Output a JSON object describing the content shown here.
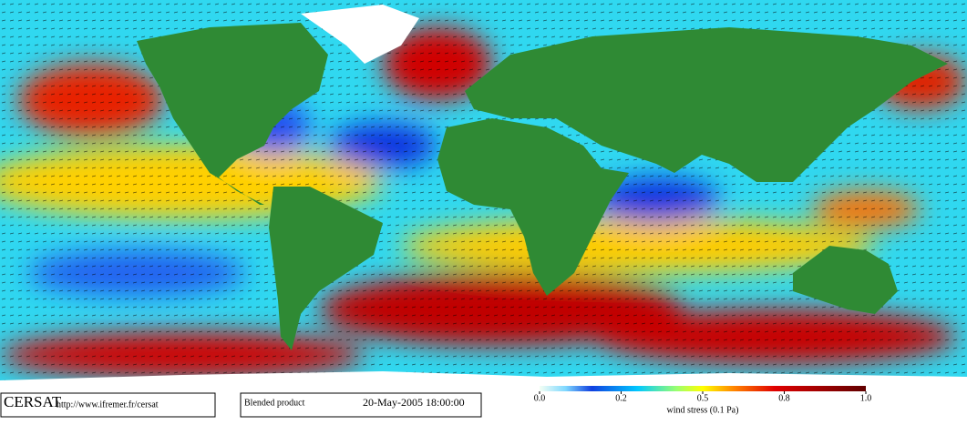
{
  "header": {
    "logo": "CERSAT",
    "url": "http://www.ifremer.fr/cersat",
    "product": "Blended product",
    "datetime": "20-May-2005 18:00:00"
  },
  "colorbar": {
    "ticks": [
      {
        "value": 0,
        "label": "0.0"
      },
      {
        "value": 0.2,
        "label": "0.2"
      },
      {
        "value": 0.5,
        "label": "0.5"
      },
      {
        "value": 0.8,
        "label": "0.8"
      },
      {
        "value": 1,
        "label": "1.0"
      }
    ],
    "label": "wind stress (0.1 Pa)"
  }
}
